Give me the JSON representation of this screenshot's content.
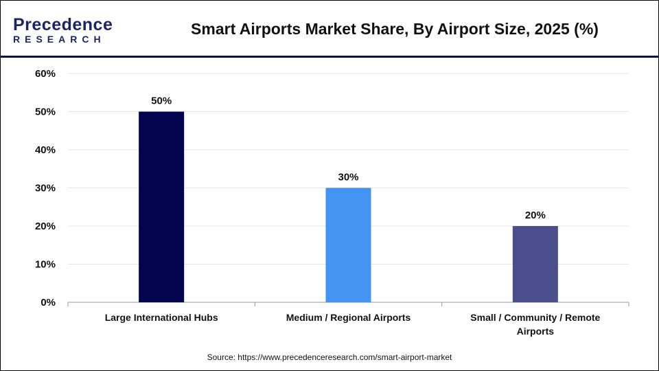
{
  "brand": {
    "line1": "Precedence",
    "line2": "RESEARCH"
  },
  "chart_data": {
    "type": "bar",
    "title": "Smart Airports Market Share, By Airport Size, 2025 (%)",
    "categories": [
      "Large International Hubs",
      "Medium / Regional Airports",
      "Small / Community / Remote Airports"
    ],
    "category_lines": [
      [
        "Large International Hubs"
      ],
      [
        "Medium / Regional Airports"
      ],
      [
        "Small / Community / Remote",
        "Airports"
      ]
    ],
    "values": [
      50,
      30,
      20
    ],
    "data_labels": [
      "50%",
      "30%",
      "20%"
    ],
    "colors": [
      "#02044d",
      "#4394f0",
      "#4a4e8a"
    ],
    "ylim": [
      0,
      60
    ],
    "yticks": [
      "0%",
      "10%",
      "20%",
      "30%",
      "40%",
      "50%",
      "60%"
    ],
    "grid": true,
    "xlabel": "",
    "ylabel": ""
  },
  "source": "Source: https://www.precedenceresearch.com/smart-airport-market"
}
